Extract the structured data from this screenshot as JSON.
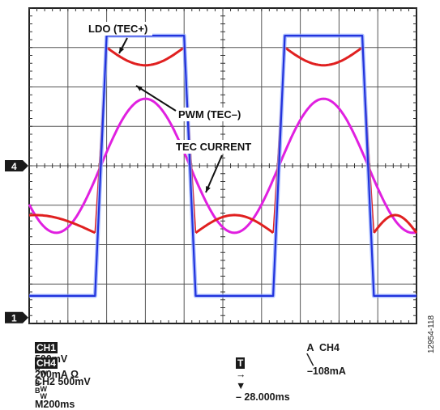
{
  "chart_data": {
    "type": "line",
    "grid": true,
    "divisions": {
      "x": 10,
      "y": 8
    },
    "annotations": [
      "LDO (TEC+)",
      "PWM (TEC–)",
      "TEC CURRENT"
    ],
    "channel_markers": [
      {
        "label": "4",
        "level_div": 4.0
      },
      {
        "label": "1",
        "level_div": 0.15
      }
    ],
    "series": [
      {
        "name": "LDO (TEC+)",
        "color": "#2233dd",
        "x_div": [
          0,
          1.7,
          2.0,
          4.0,
          4.3,
          6.3,
          6.6,
          8.6,
          8.9,
          10
        ],
        "y_div": [
          0.7,
          0.7,
          7.3,
          7.3,
          0.7,
          0.7,
          7.3,
          7.3,
          0.7,
          0.7
        ]
      },
      {
        "name": "PWM (TEC–)",
        "color": "#e02020",
        "segments": [
          {
            "x_div": [
              0,
              1.7
            ],
            "low_dip": true
          },
          {
            "x_div": [
              2.0,
              4.0
            ],
            "high_dip": true
          },
          {
            "x_div": [
              4.3,
              6.3
            ],
            "low_dip": true
          },
          {
            "x_div": [
              6.6,
              8.6
            ],
            "high_dip": true
          },
          {
            "x_div": [
              8.9,
              10
            ],
            "low_dip": true
          }
        ],
        "high_div": [
          7.0,
          6.55
        ],
        "low_div": [
          2.3,
          2.75
        ]
      },
      {
        "name": "TEC CURRENT",
        "color": "#e020e0",
        "center_div": 4.0,
        "amplitude_div": 1.7,
        "period_div": 4.6,
        "peak_x_div": 3.0
      }
    ]
  },
  "readouts": {
    "ch1_box": "CH1",
    "ch1_scale": "500mV",
    "bw": "B",
    "bw_sub": "W",
    "ch2": "CH2 500mV",
    "timebase": "M200ms",
    "trigger": "A  CH4",
    "trigger_level": "–108mA",
    "ch4_box": "CH4",
    "ch4_scale": "200mA Ω",
    "t_box": "T",
    "offset": "– 28.000ms"
  },
  "figure_id": "12954-118"
}
